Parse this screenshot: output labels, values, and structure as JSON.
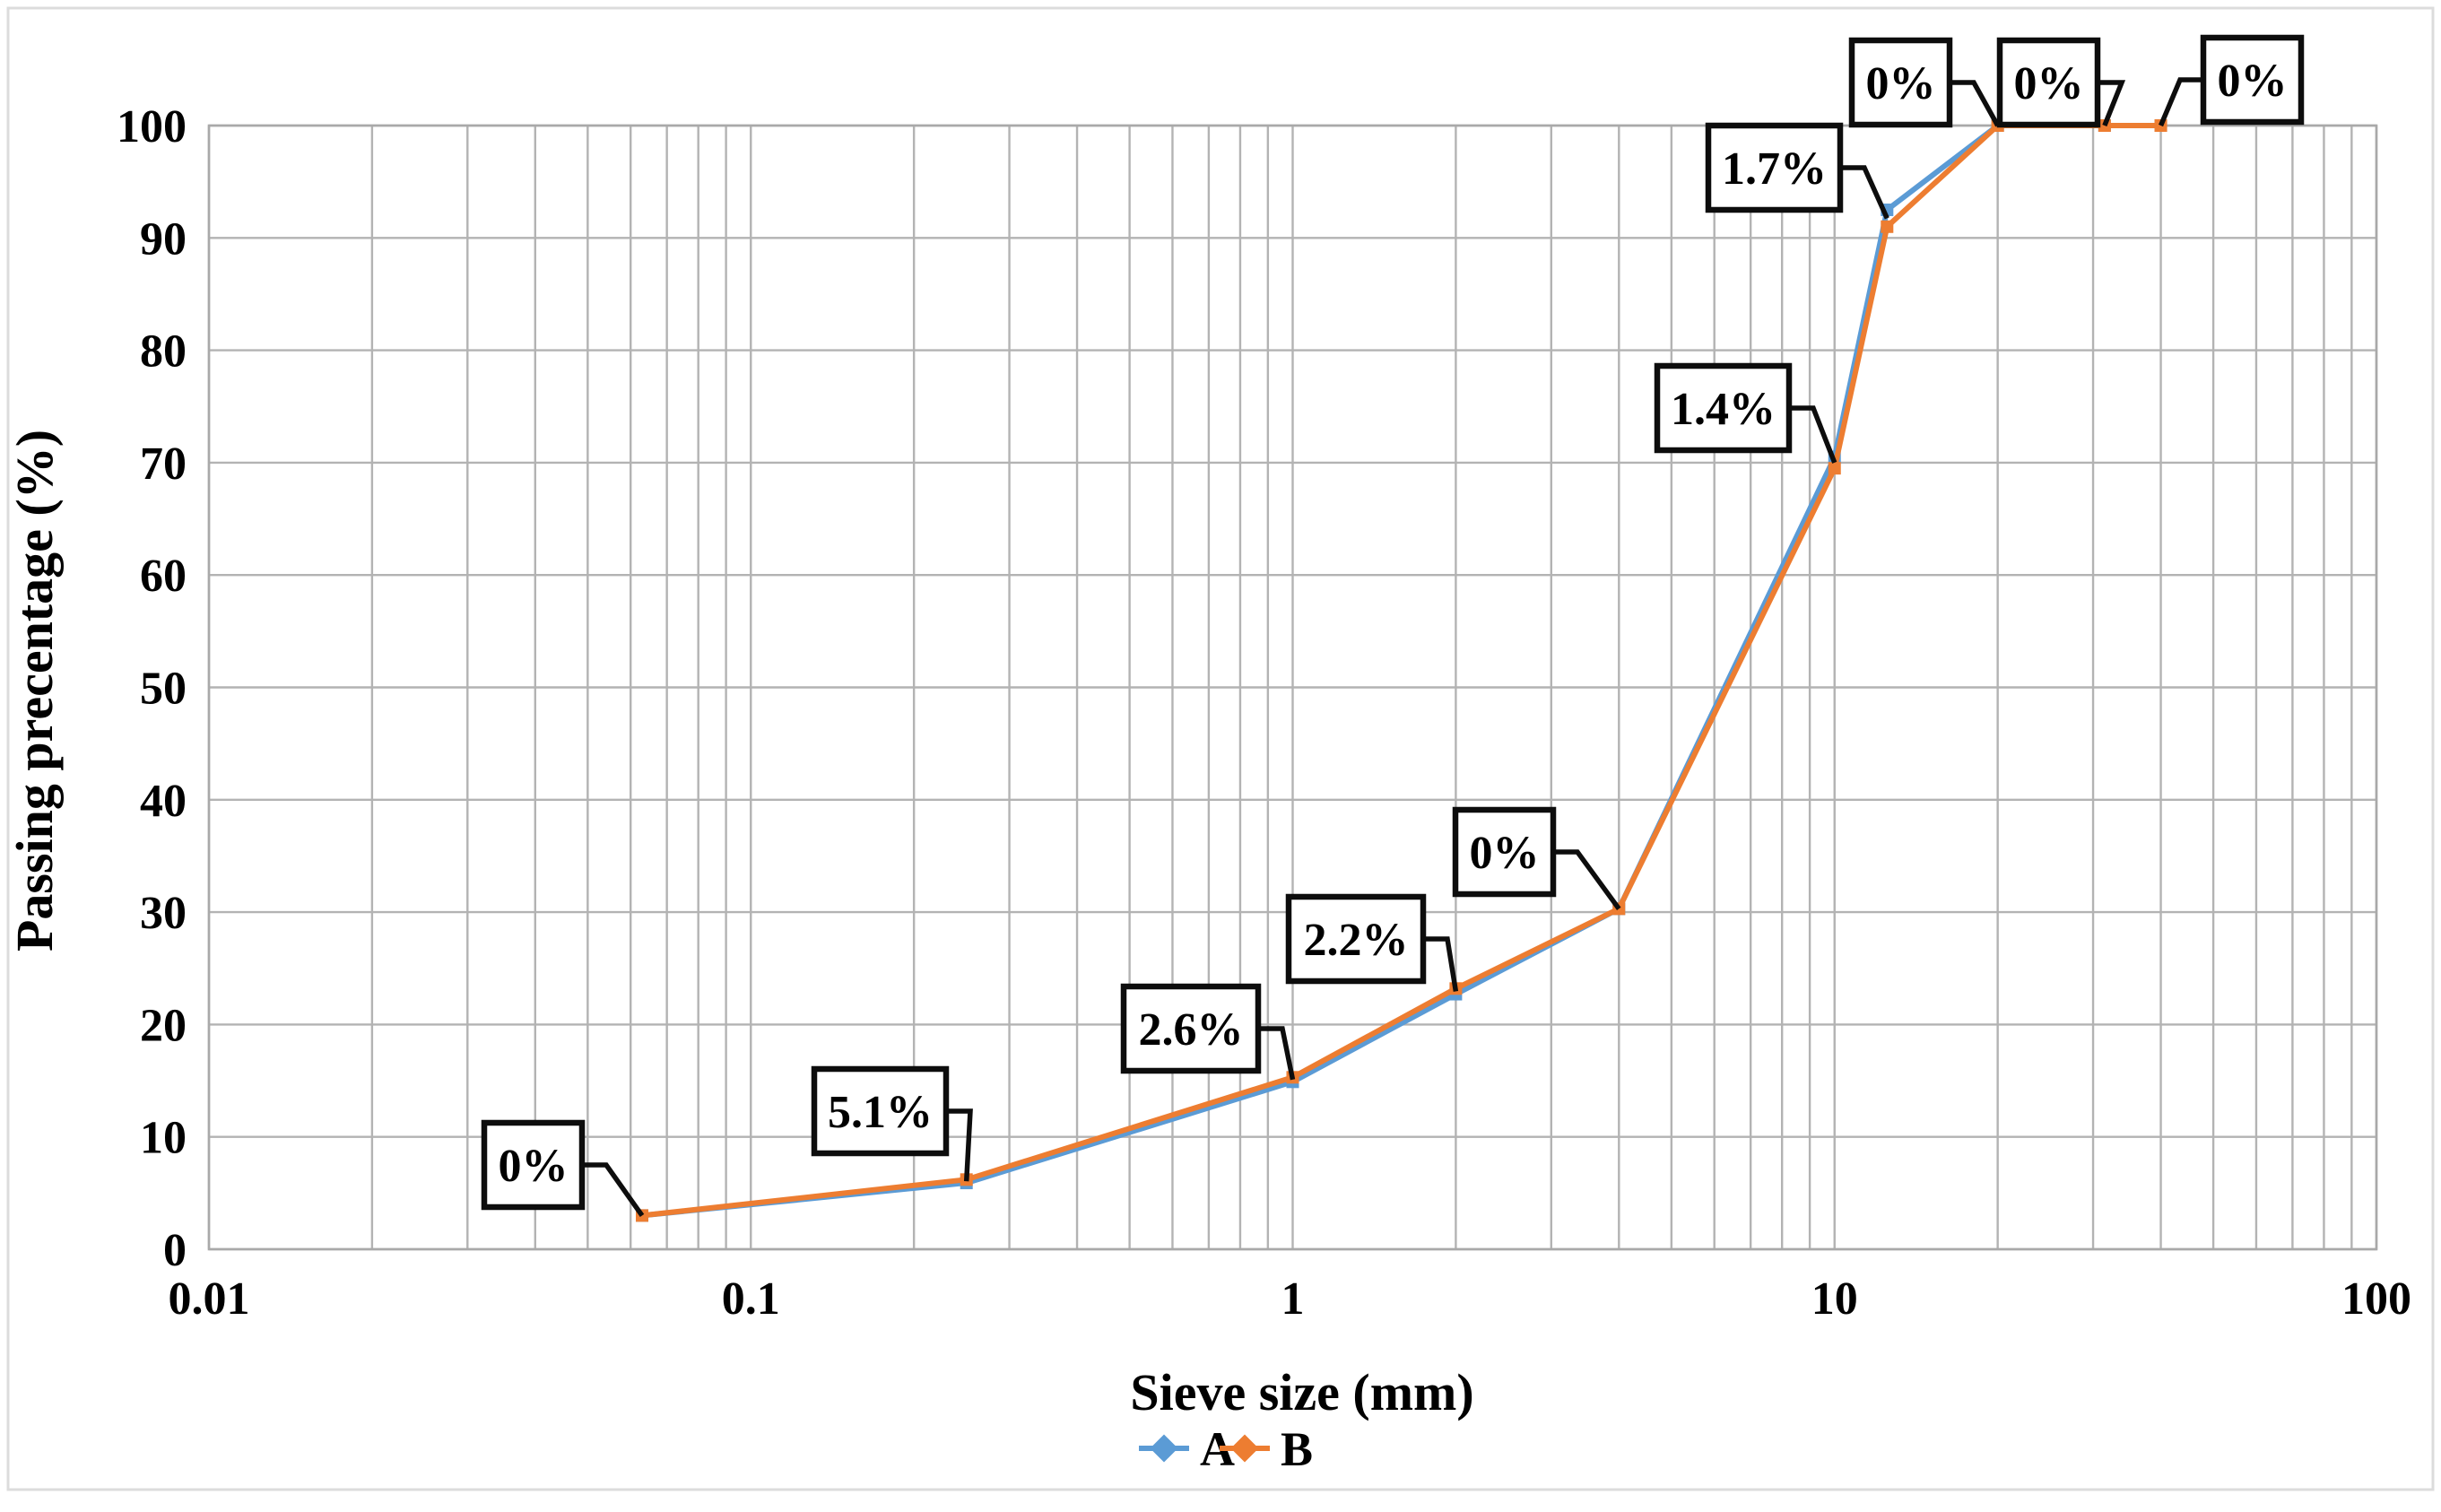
{
  "chart_data": {
    "type": "line",
    "title": "",
    "xlabel": "Sieve size (mm)",
    "ylabel": "Passing precentage (%)",
    "x": [
      0.063,
      0.25,
      1,
      2,
      4,
      10,
      12.5,
      20,
      31.5,
      40
    ],
    "series": [
      {
        "name": "A",
        "color": "#5B9BD5",
        "values": [
          3,
          5.9,
          14.9,
          22.7,
          30.3,
          70.5,
          92.5,
          100,
          100,
          100
        ]
      },
      {
        "name": "B",
        "color": "#ED7D31",
        "values": [
          3,
          6.2,
          15.3,
          23.2,
          30.3,
          69.5,
          91,
          100,
          100,
          100
        ]
      }
    ],
    "point_labels": [
      "0%",
      "5.1%",
      "2.6%",
      "2.2%",
      "0%",
      "1.4%",
      "1.7%",
      "0%",
      "0%",
      "0%"
    ],
    "x_axis": {
      "scale": "log",
      "min": 0.01,
      "max": 100,
      "tick_values": [
        0.01,
        0.1,
        1,
        10,
        100
      ],
      "tick_labels": [
        "0.01",
        "0.1",
        "1",
        "10",
        "100"
      ]
    },
    "y_axis": {
      "min": 0,
      "max": 100,
      "step": 10,
      "tick_labels": [
        "0",
        "10",
        "20",
        "30",
        "40",
        "50",
        "60",
        "70",
        "80",
        "90",
        "100"
      ]
    },
    "legend": {
      "position": "bottom",
      "entries": [
        "A",
        "B"
      ]
    },
    "grid": {
      "horizontal": "major",
      "vertical": "log-minor",
      "on": true
    }
  },
  "colors": {
    "series_a": "#5B9BD5",
    "series_b": "#ED7D31",
    "grid": "#b3b3b3",
    "plot_border": "#a9a9a9",
    "callout_border": "#0d0d0d",
    "callout_fill": "#ffffff",
    "leader_line": "#0d0d0d",
    "background": "#ffffff",
    "figure_border": "#dcdcdc",
    "text": "#000000"
  }
}
